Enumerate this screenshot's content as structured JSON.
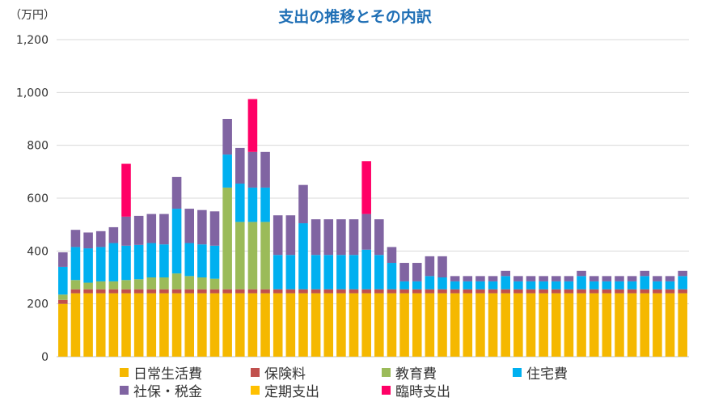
{
  "title": "支出の推移とその内訳",
  "unit_label": "（万円）",
  "colors": {
    "daily": "#f5b800",
    "insurance": "#c0504d",
    "education": "#9bbb59",
    "housing": "#00b0f0",
    "social_tax": "#8064a2",
    "fixed": "#ffc000",
    "temporary": "#ff0066",
    "grid": "#d9d9d9",
    "axis_text": "#333333",
    "title": "#1f6fb5"
  },
  "chart_data": {
    "type": "bar",
    "stacked": true,
    "ylim": [
      0,
      1200
    ],
    "yticks": [
      "0",
      "200",
      "400",
      "600",
      "800",
      "1,000",
      "1,200"
    ],
    "ytick_values": [
      0,
      200,
      400,
      600,
      800,
      1000,
      1200
    ],
    "grid": true,
    "legend_position": "bottom",
    "bar_count": 50,
    "series": [
      {
        "name": "日常生活費",
        "key": "daily",
        "values": [
          200,
          240,
          240,
          240,
          240,
          240,
          240,
          240,
          240,
          240,
          240,
          240,
          240,
          240,
          240,
          240,
          240,
          240,
          240,
          240,
          240,
          240,
          240,
          240,
          240,
          240,
          240,
          240,
          240,
          240,
          240,
          240,
          240,
          240,
          240,
          240,
          240,
          240,
          240,
          240,
          240,
          240,
          240,
          240,
          240,
          240,
          240,
          240,
          240,
          240
        ]
      },
      {
        "name": "保険料",
        "key": "insurance",
        "values": [
          15,
          15,
          15,
          15,
          15,
          15,
          15,
          15,
          15,
          15,
          15,
          15,
          15,
          15,
          15,
          15,
          15,
          15,
          15,
          15,
          15,
          15,
          15,
          15,
          15,
          15,
          15,
          15,
          15,
          15,
          15,
          15,
          15,
          15,
          15,
          15,
          15,
          15,
          15,
          15,
          15,
          15,
          15,
          15,
          15,
          15,
          15,
          15,
          15,
          15
        ]
      },
      {
        "name": "教育費",
        "key": "education",
        "values": [
          20,
          35,
          25,
          30,
          30,
          35,
          38,
          45,
          45,
          60,
          50,
          45,
          40,
          385,
          255,
          255,
          255,
          0,
          0,
          0,
          0,
          0,
          0,
          0,
          0,
          0,
          0,
          0,
          0,
          0,
          0,
          0,
          0,
          0,
          0,
          0,
          0,
          0,
          0,
          0,
          0,
          0,
          0,
          0,
          0,
          0,
          0,
          0,
          0,
          0
        ]
      },
      {
        "name": "住宅費",
        "key": "housing",
        "values": [
          105,
          125,
          130,
          130,
          145,
          130,
          130,
          130,
          125,
          245,
          125,
          125,
          125,
          125,
          145,
          130,
          130,
          130,
          130,
          250,
          130,
          130,
          130,
          130,
          150,
          130,
          100,
          30,
          30,
          50,
          45,
          30,
          30,
          30,
          30,
          50,
          30,
          30,
          30,
          30,
          30,
          50,
          30,
          30,
          30,
          30,
          50,
          30,
          30,
          50
        ]
      },
      {
        "name": "社保・税金",
        "key": "social_tax",
        "values": [
          55,
          65,
          60,
          60,
          60,
          110,
          110,
          110,
          115,
          120,
          130,
          130,
          130,
          135,
          135,
          135,
          135,
          150,
          150,
          145,
          135,
          135,
          135,
          135,
          135,
          135,
          60,
          70,
          70,
          75,
          80,
          20,
          20,
          20,
          20,
          20,
          20,
          20,
          20,
          20,
          20,
          20,
          20,
          20,
          20,
          20,
          20,
          20,
          20,
          20
        ]
      },
      {
        "name": "定期支出",
        "key": "fixed",
        "values": [
          0,
          0,
          0,
          0,
          0,
          0,
          0,
          0,
          0,
          0,
          0,
          0,
          0,
          0,
          0,
          0,
          0,
          0,
          0,
          0,
          0,
          0,
          0,
          0,
          0,
          0,
          0,
          0,
          0,
          0,
          0,
          0,
          0,
          0,
          0,
          0,
          0,
          0,
          0,
          0,
          0,
          0,
          0,
          0,
          0,
          0,
          0,
          0,
          0,
          0
        ]
      },
      {
        "name": "臨時支出",
        "key": "temporary",
        "values": [
          0,
          0,
          0,
          0,
          0,
          200,
          0,
          0,
          0,
          0,
          0,
          0,
          0,
          0,
          0,
          200,
          0,
          0,
          0,
          0,
          0,
          0,
          0,
          0,
          200,
          0,
          0,
          0,
          0,
          0,
          0,
          0,
          0,
          0,
          0,
          0,
          0,
          0,
          0,
          0,
          0,
          0,
          0,
          0,
          0,
          0,
          0,
          0,
          0,
          0
        ]
      }
    ]
  },
  "legend": {
    "items": [
      {
        "label": "日常生活費",
        "key": "daily"
      },
      {
        "label": "保険料",
        "key": "insurance"
      },
      {
        "label": "教育費",
        "key": "education"
      },
      {
        "label": "住宅費",
        "key": "housing"
      },
      {
        "label": "社保・税金",
        "key": "social_tax"
      },
      {
        "label": "定期支出",
        "key": "fixed"
      },
      {
        "label": "臨時支出",
        "key": "temporary"
      }
    ]
  }
}
